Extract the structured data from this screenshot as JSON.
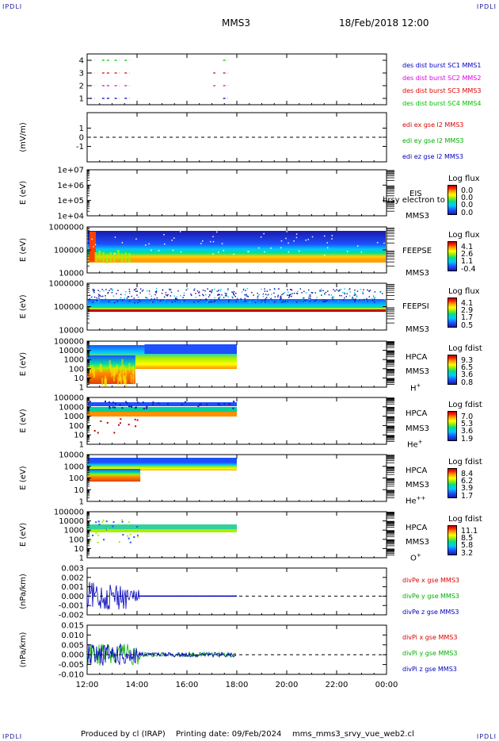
{
  "header": {
    "corner_label": "IPDLI",
    "spacecraft": "MMS3",
    "datetime": "18/Feb/2018 12:00"
  },
  "footer": {
    "produced_by": "Produced by cl (IRAP)",
    "printing_date": "Printing date: 09/Feb/2024",
    "filename": "mms_mms3_srvy_vue_web2.cl"
  },
  "time_axis": {
    "ticks": [
      "12:00",
      "14:00",
      "16:00",
      "18:00",
      "20:00",
      "22:00",
      "00:00"
    ],
    "data_end": "18:00"
  },
  "panels": {
    "burst": {
      "y_ticks": [
        "4",
        "3",
        "2",
        "1"
      ],
      "legend": [
        {
          "text": "des dist burst SC1 MMS1",
          "color": "#0000c0"
        },
        {
          "text": "des dist burst SC2 MMS2",
          "color": "#e000e0"
        },
        {
          "text": "des dist burst SC3 MMS3",
          "color": "#e00000"
        },
        {
          "text": "des dist burst SC4 MMS4",
          "color": "#00c000"
        }
      ]
    },
    "edi": {
      "ylabel": "(mV/m)",
      "y_ticks": [
        "1",
        "0",
        "-1"
      ],
      "legend": [
        {
          "text": "edi ex gse l2 MMS3",
          "color": "#e00000"
        },
        {
          "text": "edi ey gse l2 MMS3",
          "color": "#00b000"
        },
        {
          "text": "edi ez gse l2 MMS3",
          "color": "#0000c0"
        }
      ]
    },
    "eis": {
      "ylabel": "E (eV)",
      "y_ticks": [
        "1e+07",
        "1e+06",
        "1e+05",
        "1e+04"
      ],
      "instrument": "EIS",
      "spacecraft": "MMS3",
      "overlay": "brsy electron to",
      "cb_title": "Log flux",
      "cb_values": [
        "0.0",
        "0.0",
        "0.0",
        "0.0"
      ]
    },
    "feepse": {
      "ylabel": "E (eV)",
      "y_ticks": [
        "1000000",
        "100000",
        "10000"
      ],
      "instrument": "FEEPSE",
      "spacecraft": "MMS3",
      "cb_title": "Log flux",
      "cb_values": [
        "4.1",
        "2.6",
        "1.1",
        "-0.4"
      ]
    },
    "feepsi": {
      "ylabel": "E (eV)",
      "y_ticks": [
        "1000000",
        "100000",
        "10000"
      ],
      "instrument": "FEEPSI",
      "spacecraft": "MMS3",
      "cb_title": "Log flux",
      "cb_values": [
        "4.1",
        "2.9",
        "1.7",
        "0.5"
      ]
    },
    "hpca_h": {
      "ylabel": "E (eV)",
      "y_ticks": [
        "100000",
        "10000",
        "1000",
        "100",
        "10",
        "1"
      ],
      "instrument": "HPCA",
      "spacecraft": "MMS3",
      "species": "H",
      "charge": "+",
      "cb_title": "Log fdist",
      "cb_values": [
        "9.3",
        "6.5",
        "3.6",
        "0.8"
      ]
    },
    "hpca_he": {
      "ylabel": "E (eV)",
      "y_ticks": [
        "100000",
        "10000",
        "1000",
        "100",
        "10",
        "1"
      ],
      "instrument": "HPCA",
      "spacecraft": "MMS3",
      "species": "He",
      "charge": "+",
      "cb_title": "Log fdist",
      "cb_values": [
        "7.0",
        "5.3",
        "3.6",
        "1.9"
      ]
    },
    "hpca_he2": {
      "ylabel": "E (eV)",
      "y_ticks": [
        "10000",
        "1000",
        "100",
        "10",
        "1"
      ],
      "instrument": "HPCA",
      "spacecraft": "MMS3",
      "species": "He",
      "charge": "++",
      "cb_title": "Log fdist",
      "cb_values": [
        "8.4",
        "6.2",
        "3.9",
        "1.7"
      ]
    },
    "hpca_o": {
      "ylabel": "E (eV)",
      "y_ticks": [
        "100000",
        "10000",
        "1000",
        "100",
        "10",
        "1"
      ],
      "instrument": "HPCA",
      "spacecraft": "MMS3",
      "species": "O",
      "charge": "+",
      "cb_title": "Log fdist",
      "cb_values": [
        "11.1",
        "8.5",
        "5.8",
        "3.2"
      ]
    },
    "divpe": {
      "ylabel": "(nPa/km)",
      "y_ticks": [
        "0.003",
        "0.002",
        "0.001",
        "0.000",
        "-0.001",
        "-0.002"
      ],
      "legend": [
        {
          "text": "divPe x gse MMS3",
          "color": "#e00000"
        },
        {
          "text": "divPe y gse MMS3",
          "color": "#00b000"
        },
        {
          "text": "divPe z gse MMS3",
          "color": "#0000c0"
        }
      ]
    },
    "divpi": {
      "ylabel": "(nPa/km)",
      "y_ticks": [
        "0.015",
        "0.010",
        "0.005",
        "0.000",
        "-0.005",
        "-0.010"
      ],
      "legend": [
        {
          "text": "divPi x gse MMS3",
          "color": "#e00000"
        },
        {
          "text": "divPi y gse MMS3",
          "color": "#00b000"
        },
        {
          "text": "divPi z gse MMS3",
          "color": "#0000c0"
        }
      ]
    }
  },
  "chart_data": {
    "type": "heatmap",
    "x_range": [
      "12:00",
      "00:00"
    ],
    "colormap": [
      "#1a1aa8",
      "#1e50ff",
      "#00c8ff",
      "#00e08c",
      "#a8f000",
      "#ffff00",
      "#ff9000",
      "#ff1a00",
      "#c00000"
    ]
  }
}
